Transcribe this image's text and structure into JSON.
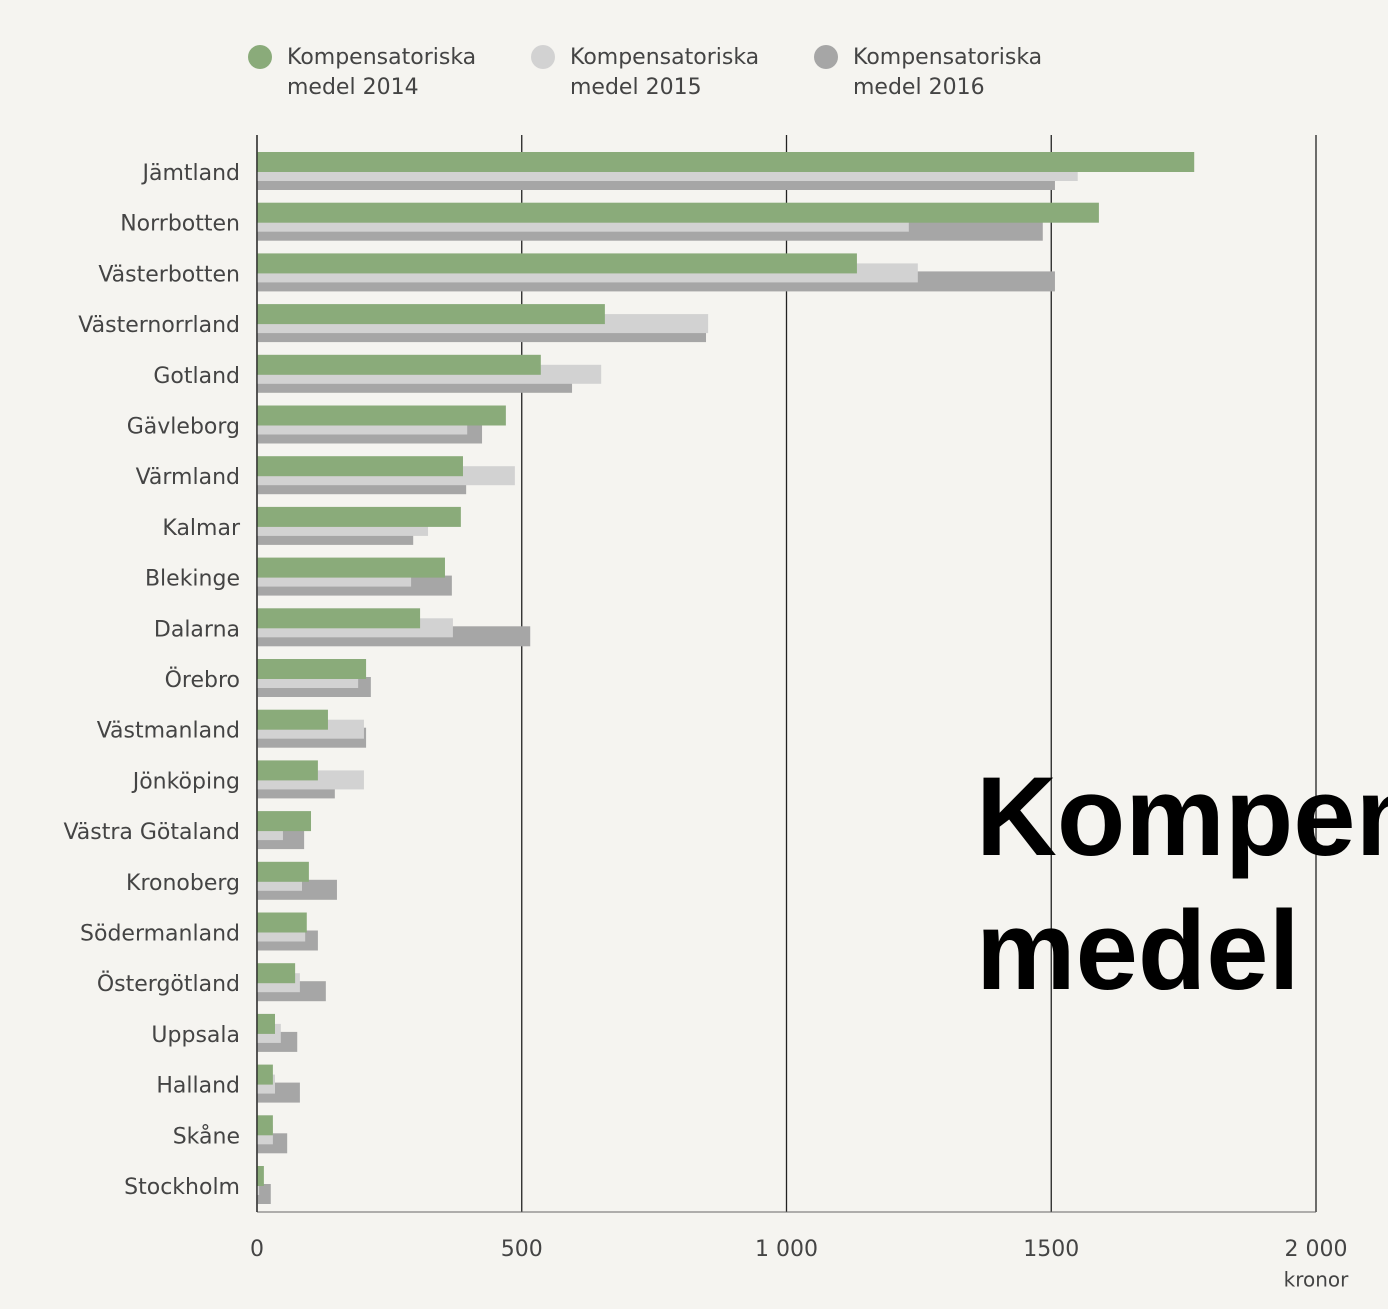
{
  "chart_data": {
    "type": "bar",
    "orientation": "horizontal",
    "categories": [
      "Jämtland",
      "Norrbotten",
      "Västerbotten",
      "Västernorrland",
      "Gotland",
      "Gävleborg",
      "Värmland",
      "Kalmar",
      "Blekinge",
      "Dalarna",
      "Örebro",
      "Västmanland",
      "Jönköping",
      "Västra Götaland",
      "Kronoberg",
      "Södermanland",
      "Östergötland",
      "Uppsala",
      "Halland",
      "Skåne",
      "Stockholm"
    ],
    "series": [
      {
        "name": "Kompensatoriska medel 2014",
        "color": "#8aab7a",
        "values": [
          1770,
          1590,
          1133,
          657,
          536,
          470,
          389,
          385,
          355,
          308,
          206,
          134,
          115,
          102,
          98,
          94,
          72,
          34,
          30,
          30,
          13
        ]
      },
      {
        "name": "Kompensatoriska medel 2015",
        "color": "#d2d2d2",
        "values": [
          1550,
          1231,
          1248,
          852,
          650,
          397,
          487,
          323,
          291,
          370,
          191,
          202,
          202,
          49,
          85,
          91,
          81,
          45,
          34,
          30,
          4
        ]
      },
      {
        "name": "Kompensatoriska medel 2016",
        "color": "#a6a6a6",
        "values": [
          1507,
          1484,
          1507,
          848,
          595,
          425,
          395,
          295,
          368,
          516,
          215,
          206,
          147,
          89,
          151,
          115,
          130,
          76,
          81,
          57,
          26
        ]
      }
    ],
    "xlim": [
      0,
      2000
    ],
    "xticks": [
      0,
      500,
      {
        "value": 1000,
        "label": "1 000"
      },
      1500,
      {
        "value": 2000,
        "label": "2 000"
      }
    ],
    "x_label": "kronor",
    "annotation": "Kompensatoriska medel",
    "grid": true,
    "legend": "top"
  }
}
